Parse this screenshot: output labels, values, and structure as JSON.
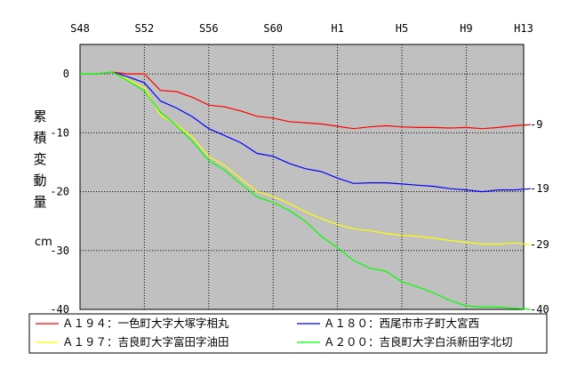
{
  "chart_data": {
    "type": "line",
    "x": [
      "S48",
      "S49",
      "S50",
      "S51",
      "S52",
      "S53",
      "S54",
      "S55",
      "S56",
      "S57",
      "S58",
      "S59",
      "S60",
      "S61",
      "S62",
      "S63",
      "H1",
      "H2",
      "H3",
      "H4",
      "H5",
      "H6",
      "H7",
      "H8",
      "H9",
      "H10",
      "H11",
      "H12",
      "H13"
    ],
    "x_tick_labels": [
      "S48",
      "S52",
      "S56",
      "S60",
      "H1",
      "H5",
      "H9",
      "H13"
    ],
    "ylabel": "累積変動量",
    "yunit": "cm",
    "ylim": [
      -40,
      5
    ],
    "y_ticks": [
      0,
      -10,
      -20,
      -30,
      -40
    ],
    "grid": "dotted",
    "plot_background": "#c0c0c0",
    "legend_position": "bottom",
    "series": [
      {
        "name": "Ａ１９４：一色町大字大塚字相丸",
        "color": "#ff0000",
        "values": [
          0,
          0,
          0.3,
          0,
          0,
          -2.8,
          -3.0,
          -4.0,
          -5.3,
          -5.6,
          -6.3,
          -7.2,
          -7.5,
          -8.1,
          -8.3,
          -8.5,
          -8.9,
          -9.3,
          -9.0,
          -8.8,
          -9.0,
          -9.1,
          -9.1,
          -9.2,
          -9.1,
          -9.3,
          -9.1,
          -8.8,
          -8.6
        ],
        "end_label": "-9"
      },
      {
        "name": "Ａ１８０：西尾市市子町大宮西",
        "color": "#0000ff",
        "values": [
          0,
          0,
          0.3,
          -0.5,
          -1.5,
          -4.6,
          -5.8,
          -7.3,
          -9.3,
          -10.5,
          -11.7,
          -13.5,
          -14.0,
          -15.2,
          -16.1,
          -16.6,
          -17.7,
          -18.6,
          -18.5,
          -18.5,
          -18.7,
          -18.9,
          -19.1,
          -19.5,
          -19.7,
          -20.0,
          -19.7,
          -19.7,
          -19.5
        ],
        "end_label": "-19"
      },
      {
        "name": "Ａ１９７：吉良町大字富田字油田",
        "color": "#ffff00",
        "values": [
          0,
          0,
          0.3,
          -1.0,
          -2.3,
          -7.0,
          -8.6,
          -10.8,
          -14.0,
          -15.6,
          -17.8,
          -20.0,
          -20.8,
          -22.0,
          -23.4,
          -24.6,
          -25.6,
          -26.3,
          -26.6,
          -27.1,
          -27.4,
          -27.6,
          -27.9,
          -28.3,
          -28.6,
          -28.9,
          -28.9,
          -28.7,
          -29.0
        ],
        "end_label": "-29"
      },
      {
        "name": "Ａ２００：吉良町大字白浜新田字北切",
        "color": "#00ff00",
        "values": [
          0,
          0,
          0.3,
          -1.2,
          -2.9,
          -6.5,
          -8.8,
          -11.5,
          -14.7,
          -16.4,
          -18.7,
          -20.9,
          -21.8,
          -23.2,
          -25.0,
          -27.6,
          -29.5,
          -31.7,
          -33.0,
          -33.5,
          -35.3,
          -36.2,
          -37.2,
          -38.5,
          -39.4,
          -39.6,
          -39.6,
          -39.8,
          -40.0
        ],
        "end_label": "-40"
      }
    ]
  }
}
